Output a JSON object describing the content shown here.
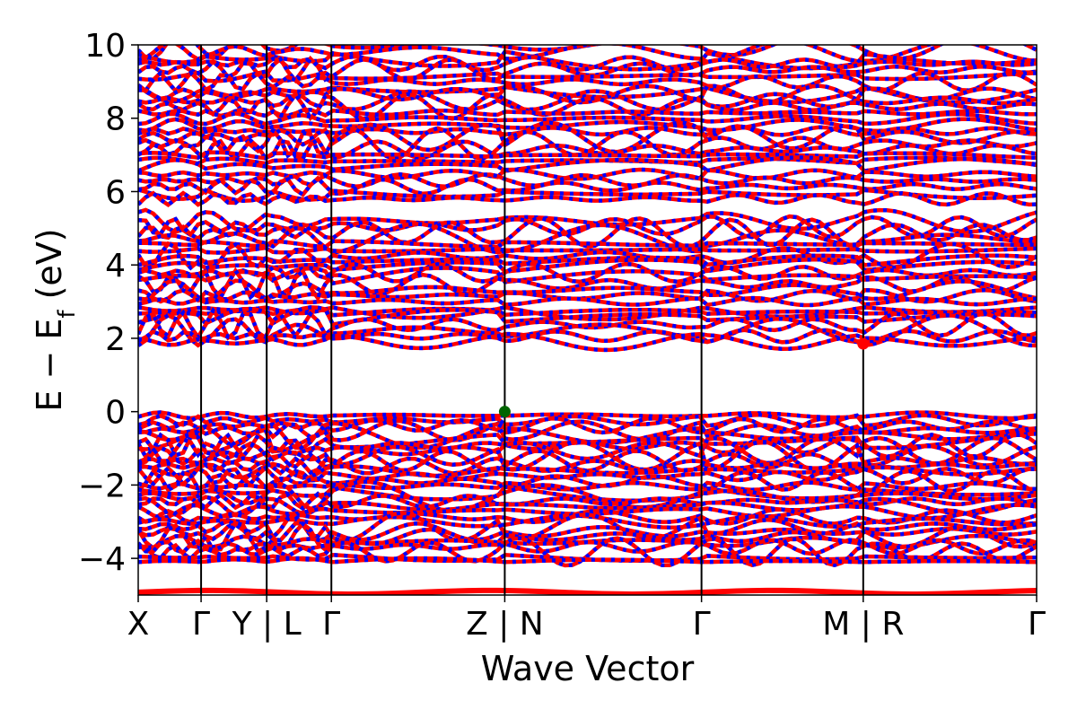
{
  "chart_data": {
    "type": "line",
    "title": "",
    "xlabel": "Wave Vector",
    "ylabel_main": "E − E",
    "ylabel_sub": "f",
    "ylabel_unit": " (eV)",
    "ylim": [
      -5,
      10
    ],
    "yticks": [
      -4,
      -2,
      0,
      2,
      4,
      6,
      8,
      10
    ],
    "ytick_labels": [
      "−4",
      "−2",
      "0",
      "2",
      "4",
      "6",
      "8",
      "10"
    ],
    "xlim": [
      0,
      1
    ],
    "kpoints": [
      {
        "x": 0.0,
        "label": "X"
      },
      {
        "x": 0.07,
        "label": "Γ"
      },
      {
        "x": 0.143,
        "label": "Y | L"
      },
      {
        "x": 0.215,
        "label": "Γ"
      },
      {
        "x": 0.408,
        "label": "Z | N"
      },
      {
        "x": 0.627,
        "label": "Γ"
      },
      {
        "x": 0.807,
        "label": "M | R"
      },
      {
        "x": 1.0,
        "label": "Γ"
      }
    ],
    "band_colors": {
      "spin_up": "#ff0000",
      "spin_down": "#0000ff"
    },
    "band_groups": [
      {
        "name": "valence",
        "top": -0.1,
        "bottom": -4.1,
        "count": 30
      },
      {
        "name": "conduction_low",
        "top": 5.2,
        "bottom": 1.9,
        "count": 22
      },
      {
        "name": "conduction_high",
        "top": 10.0,
        "bottom": 5.8,
        "count": 26
      }
    ],
    "markers": [
      {
        "name": "VBM",
        "x": 0.408,
        "y": 0.0,
        "color": "#006400"
      },
      {
        "name": "CBM",
        "x": 0.807,
        "y": 1.85,
        "color": "#ff0000"
      }
    ]
  }
}
